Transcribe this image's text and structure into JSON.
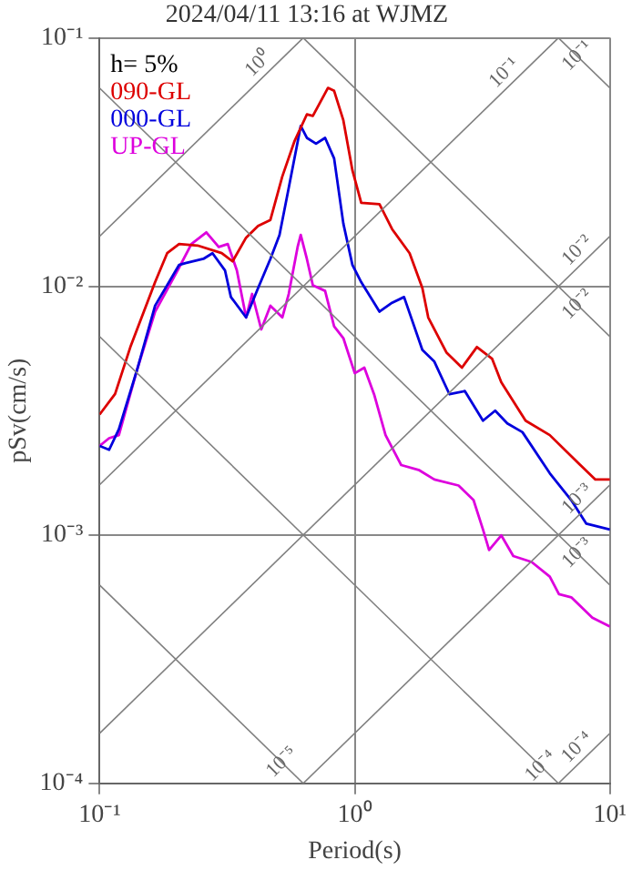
{
  "chart_data": {
    "type": "line",
    "title": "2024/04/11 13:16 at WJMZ",
    "xlabel": "Period(s)",
    "ylabel": "pSv(cm/s)",
    "log": "xy",
    "grid": true,
    "legend": "top left",
    "marker": "none",
    "line_style": "solid",
    "xlim": [
      0.1,
      10
    ],
    "ylim": [
      0.0001,
      0.1
    ],
    "xticks": [
      {
        "value": 0.1,
        "label": "10⁻¹"
      },
      {
        "value": 1,
        "label": "10⁰"
      },
      {
        "value": 10,
        "label": "10¹"
      }
    ],
    "yticks": [
      {
        "value": 0.0001,
        "label": "10⁻⁴"
      },
      {
        "value": 0.001,
        "label": "10⁻³"
      },
      {
        "value": 0.01,
        "label": "10⁻²"
      },
      {
        "value": 0.1,
        "label": "10⁻¹"
      }
    ],
    "annotations": [
      "h= 5%",
      {
        "text": "10⁰",
        "x": 0.454,
        "y": 0.0723
      },
      {
        "text": "10⁻¹",
        "x": 4.18,
        "y": 0.0665
      },
      {
        "text": "10⁻¹",
        "x": 8.07,
        "y": 0.0779
      },
      {
        "text": "10⁻²",
        "x": 8.07,
        "y": 0.01284
      },
      {
        "text": "10⁻²",
        "x": 8.07,
        "y": 0.00778
      },
      {
        "text": "10⁻³",
        "x": 8.07,
        "y": 0.001284
      },
      {
        "text": "10⁻³",
        "x": 8.07,
        "y": 0.000778
      },
      {
        "text": "10⁻⁴",
        "x": 5.81,
        "y": 0.000108
      },
      {
        "text": "10⁻⁴",
        "x": 8.07,
        "y": 0.0001284
      },
      {
        "text": "10⁻⁵",
        "x": 0.562,
        "y": 0.000112
      }
    ],
    "series": [
      {
        "color": "#808080",
        "x": [
          0.1,
          0.628
        ],
        "values": [
          0.0159,
          0.1
        ]
      },
      {
        "color": "#808080",
        "x": [
          0.1,
          6.28
        ],
        "values": [
          0.00159,
          0.1
        ]
      },
      {
        "color": "#808080",
        "x": [
          0.1,
          10
        ],
        "values": [
          0.000159,
          0.0159
        ]
      },
      {
        "color": "#808080",
        "x": [
          0.628,
          10
        ],
        "values": [
          0.0001,
          0.00159
        ]
      },
      {
        "color": "#808080",
        "x": [
          6.28,
          10
        ],
        "values": [
          0.0001,
          0.000159
        ]
      },
      {
        "color": "#808080",
        "x": [
          6.28,
          10
        ],
        "values": [
          0.1,
          0.0628
        ]
      },
      {
        "color": "#808080",
        "x": [
          0.628,
          10
        ],
        "values": [
          0.1,
          0.00628
        ]
      },
      {
        "color": "#808080",
        "x": [
          0.1,
          10
        ],
        "values": [
          0.0628,
          0.000628
        ]
      },
      {
        "color": "#808080",
        "x": [
          0.1,
          6.28
        ],
        "values": [
          0.00628,
          0.0001
        ]
      },
      {
        "color": "#808080",
        "x": [
          0.1,
          0.628
        ],
        "values": [
          0.000628,
          0.0001
        ]
      },
      {
        "name": "090-GL",
        "color": "#dd0000",
        "x": [
          0.1,
          0.115,
          0.132,
          0.165,
          0.184,
          0.205,
          0.242,
          0.301,
          0.332,
          0.375,
          0.418,
          0.467,
          0.52,
          0.581,
          0.649,
          0.685,
          0.785,
          0.83,
          0.902,
          0.979,
          1.06,
          1.25,
          1.4,
          1.64,
          1.84,
          1.94,
          2.29,
          2.63,
          3.01,
          3.45,
          3.75,
          4.67,
          5.81,
          7.23,
          8.77,
          10
        ],
        "values": [
          0.00305,
          0.00369,
          0.0057,
          0.0104,
          0.0136,
          0.0148,
          0.0146,
          0.0136,
          0.0126,
          0.0157,
          0.0175,
          0.0185,
          0.0277,
          0.0385,
          0.0492,
          0.0485,
          0.0629,
          0.0612,
          0.0466,
          0.0293,
          0.0217,
          0.0214,
          0.017,
          0.0136,
          0.00984,
          0.0075,
          0.00541,
          0.00471,
          0.0057,
          0.00512,
          0.00411,
          0.00288,
          0.00252,
          0.00202,
          0.00167,
          0.00167
        ]
      },
      {
        "name": "000-GL",
        "color": "#0000dd",
        "x": [
          0.1,
          0.109,
          0.119,
          0.14,
          0.165,
          0.205,
          0.217,
          0.255,
          0.277,
          0.31,
          0.327,
          0.375,
          0.418,
          0.467,
          0.507,
          0.551,
          0.614,
          0.649,
          0.705,
          0.765,
          0.83,
          0.902,
          0.979,
          1.06,
          1.19,
          1.25,
          1.4,
          1.56,
          1.84,
          2.05,
          2.35,
          2.7,
          3.18,
          3.55,
          3.96,
          4.54,
          5.81,
          7.05,
          8.07,
          10
        ],
        "values": [
          0.00228,
          0.0022,
          0.00266,
          0.00459,
          0.00836,
          0.0122,
          0.0124,
          0.0129,
          0.0136,
          0.0116,
          0.00906,
          0.0075,
          0.00984,
          0.0129,
          0.0161,
          0.0249,
          0.0442,
          0.0396,
          0.0375,
          0.0396,
          0.0327,
          0.0179,
          0.0122,
          0.0104,
          0.00859,
          0.00791,
          0.00859,
          0.00906,
          0.00555,
          0.00498,
          0.00368,
          0.00379,
          0.00288,
          0.00316,
          0.00281,
          0.00259,
          0.00177,
          0.00138,
          0.00111,
          0.00105
        ]
      },
      {
        "name": "UP-GL",
        "color": "#dd00dd",
        "x": [
          0.1,
          0.109,
          0.119,
          0.14,
          0.165,
          0.205,
          0.229,
          0.262,
          0.293,
          0.318,
          0.345,
          0.375,
          0.396,
          0.43,
          0.467,
          0.52,
          0.551,
          0.597,
          0.614,
          0.649,
          0.685,
          0.765,
          0.83,
          0.902,
          1.0,
          1.09,
          1.19,
          1.32,
          1.52,
          1.79,
          2.05,
          2.55,
          2.92,
          3.18,
          3.36,
          3.75,
          4.18,
          4.93,
          5.81,
          6.31,
          7.05,
          8.53,
          10
        ],
        "values": [
          0.00228,
          0.00245,
          0.00252,
          0.00459,
          0.00791,
          0.0119,
          0.0148,
          0.0165,
          0.0144,
          0.0148,
          0.0116,
          0.0075,
          0.00932,
          0.00671,
          0.00836,
          0.0075,
          0.00932,
          0.0144,
          0.0161,
          0.0129,
          0.0101,
          0.00959,
          0.0069,
          0.00619,
          0.00447,
          0.00471,
          0.00368,
          0.00252,
          0.00191,
          0.00182,
          0.00167,
          0.00158,
          0.00138,
          0.00105,
          0.000869,
          0.000995,
          0.000822,
          0.000778,
          0.000679,
          0.000577,
          0.000561,
          0.000464,
          0.000428
        ]
      }
    ]
  }
}
